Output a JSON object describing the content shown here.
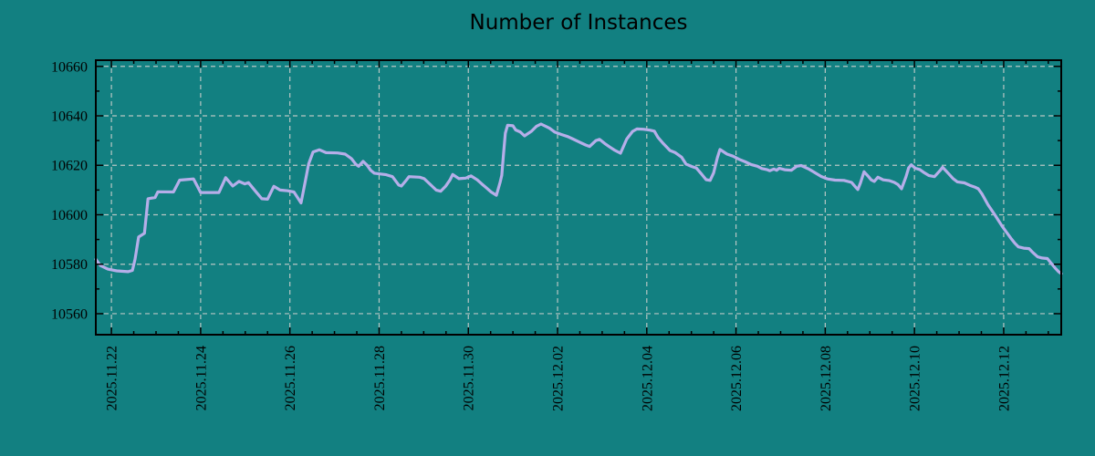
{
  "page": {
    "background_color": "#128081",
    "text_color": "#000000"
  },
  "chart_data": {
    "type": "line",
    "title": "Number of Instances",
    "xlabel": "",
    "ylabel": "",
    "legend": false,
    "grid": true,
    "series_name": "instances",
    "series_color": "#b6aee9",
    "line_width": 3.2,
    "grid_color": "#b8c6c4",
    "axis_color": "#000000",
    "x_axis": {
      "kind": "time",
      "range_days": [
        -0.35,
        21.29
      ],
      "minor_tick_interval_days": 0.5,
      "major_ticks": [
        {
          "day": 0,
          "label": "2025.11.22"
        },
        {
          "day": 2,
          "label": "2025.11.24"
        },
        {
          "day": 4,
          "label": "2025.11.26"
        },
        {
          "day": 6,
          "label": "2025.11.28"
        },
        {
          "day": 8,
          "label": "2025.11.30"
        },
        {
          "day": 10,
          "label": "2025.12.02"
        },
        {
          "day": 12,
          "label": "2025.12.04"
        },
        {
          "day": 14,
          "label": "2025.12.06"
        },
        {
          "day": 16,
          "label": "2025.12.08"
        },
        {
          "day": 18,
          "label": "2025.12.10"
        },
        {
          "day": 20,
          "label": "2025.12.12"
        }
      ]
    },
    "y_axis": {
      "range": [
        10551.5,
        10662.5
      ],
      "minor_tick_interval": 10,
      "major_ticks": [
        10560,
        10580,
        10600,
        10620,
        10640,
        10660
      ]
    },
    "points": [
      [
        -0.35,
        10582
      ],
      [
        -0.25,
        10579.5
      ],
      [
        -0.08,
        10578
      ],
      [
        0.12,
        10577.3
      ],
      [
        0.37,
        10577
      ],
      [
        0.47,
        10577.5
      ],
      [
        0.53,
        10582
      ],
      [
        0.61,
        10591
      ],
      [
        0.74,
        10592.5
      ],
      [
        0.82,
        10606.5
      ],
      [
        0.98,
        10607
      ],
      [
        1.04,
        10609.3
      ],
      [
        1.39,
        10609.2
      ],
      [
        1.53,
        10614
      ],
      [
        1.84,
        10614.5
      ],
      [
        2.0,
        10609
      ],
      [
        2.41,
        10609
      ],
      [
        2.56,
        10615
      ],
      [
        2.72,
        10611.6
      ],
      [
        2.86,
        10613.5
      ],
      [
        2.99,
        10612.5
      ],
      [
        3.07,
        10613
      ],
      [
        3.23,
        10609.5
      ],
      [
        3.37,
        10606.5
      ],
      [
        3.5,
        10606.3
      ],
      [
        3.64,
        10611.5
      ],
      [
        3.78,
        10610
      ],
      [
        3.95,
        10609.7
      ],
      [
        4.09,
        10609.2
      ],
      [
        4.17,
        10607
      ],
      [
        4.25,
        10604.8
      ],
      [
        4.34,
        10613
      ],
      [
        4.42,
        10620.5
      ],
      [
        4.52,
        10625.4
      ],
      [
        4.66,
        10626.3
      ],
      [
        4.81,
        10625.1
      ],
      [
        5.07,
        10625
      ],
      [
        5.24,
        10624.5
      ],
      [
        5.38,
        10622.7
      ],
      [
        5.48,
        10620.4
      ],
      [
        5.54,
        10619.6
      ],
      [
        5.64,
        10621.6
      ],
      [
        5.73,
        10620
      ],
      [
        5.81,
        10618
      ],
      [
        5.89,
        10616.8
      ],
      [
        6.16,
        10616.2
      ],
      [
        6.3,
        10615.4
      ],
      [
        6.44,
        10612
      ],
      [
        6.5,
        10611.6
      ],
      [
        6.61,
        10614
      ],
      [
        6.67,
        10615.4
      ],
      [
        6.91,
        10615.2
      ],
      [
        7.01,
        10614.6
      ],
      [
        7.16,
        10612
      ],
      [
        7.28,
        10610
      ],
      [
        7.38,
        10609.5
      ],
      [
        7.49,
        10611.5
      ],
      [
        7.59,
        10614.1
      ],
      [
        7.65,
        10616.3
      ],
      [
        7.79,
        10614.6
      ],
      [
        7.94,
        10614.8
      ],
      [
        8.06,
        10615.7
      ],
      [
        8.2,
        10614.1
      ],
      [
        8.3,
        10612.5
      ],
      [
        8.41,
        10610.8
      ],
      [
        8.51,
        10609.2
      ],
      [
        8.63,
        10607.9
      ],
      [
        8.71,
        10613
      ],
      [
        8.75,
        10616
      ],
      [
        8.79,
        10625
      ],
      [
        8.83,
        10633
      ],
      [
        8.88,
        10636.2
      ],
      [
        9.0,
        10636
      ],
      [
        9.06,
        10634.3
      ],
      [
        9.16,
        10633.5
      ],
      [
        9.26,
        10631.9
      ],
      [
        9.41,
        10633.7
      ],
      [
        9.53,
        10635.8
      ],
      [
        9.63,
        10636.7
      ],
      [
        9.82,
        10635
      ],
      [
        9.94,
        10633.4
      ],
      [
        10.08,
        10632.5
      ],
      [
        10.23,
        10631.6
      ],
      [
        10.35,
        10630.6
      ],
      [
        10.49,
        10629.4
      ],
      [
        10.63,
        10628.2
      ],
      [
        10.72,
        10627.6
      ],
      [
        10.86,
        10630
      ],
      [
        10.94,
        10630.5
      ],
      [
        11.06,
        10628.8
      ],
      [
        11.17,
        10627.4
      ],
      [
        11.27,
        10626.2
      ],
      [
        11.41,
        10624.9
      ],
      [
        11.55,
        10630.6
      ],
      [
        11.68,
        10633.7
      ],
      [
        11.78,
        10634.7
      ],
      [
        11.92,
        10634.6
      ],
      [
        12.07,
        10634.2
      ],
      [
        12.17,
        10633.8
      ],
      [
        12.25,
        10631.3
      ],
      [
        12.37,
        10628.8
      ],
      [
        12.52,
        10626
      ],
      [
        12.64,
        10625.1
      ],
      [
        12.78,
        10623.3
      ],
      [
        12.88,
        10620.5
      ],
      [
        13.01,
        10619.5
      ],
      [
        13.11,
        10618.9
      ],
      [
        13.21,
        10616.8
      ],
      [
        13.33,
        10614.2
      ],
      [
        13.42,
        10613.9
      ],
      [
        13.5,
        10617
      ],
      [
        13.58,
        10623
      ],
      [
        13.64,
        10626.4
      ],
      [
        13.8,
        10624.5
      ],
      [
        13.93,
        10623.7
      ],
      [
        14.07,
        10622.4
      ],
      [
        14.21,
        10621.4
      ],
      [
        14.34,
        10620.3
      ],
      [
        14.48,
        10619.6
      ],
      [
        14.58,
        10618.7
      ],
      [
        14.7,
        10618.2
      ],
      [
        14.76,
        10617.8
      ],
      [
        14.85,
        10618.5
      ],
      [
        14.91,
        10618
      ],
      [
        14.97,
        10618.8
      ],
      [
        15.09,
        10618.2
      ],
      [
        15.24,
        10618
      ],
      [
        15.36,
        10619.6
      ],
      [
        15.46,
        10619.9
      ],
      [
        15.64,
        10618.4
      ],
      [
        15.77,
        10617
      ],
      [
        15.91,
        10615.5
      ],
      [
        16.05,
        10614.5
      ],
      [
        16.22,
        10614
      ],
      [
        16.42,
        10613.9
      ],
      [
        16.59,
        10613.1
      ],
      [
        16.69,
        10611
      ],
      [
        16.73,
        10610.2
      ],
      [
        16.79,
        10612.9
      ],
      [
        16.87,
        10617.4
      ],
      [
        16.97,
        10615.4
      ],
      [
        17.03,
        10614.1
      ],
      [
        17.1,
        10613.5
      ],
      [
        17.18,
        10615.2
      ],
      [
        17.3,
        10614.1
      ],
      [
        17.44,
        10613.8
      ],
      [
        17.55,
        10613.1
      ],
      [
        17.63,
        10612.2
      ],
      [
        17.71,
        10610.5
      ],
      [
        17.81,
        10615.4
      ],
      [
        17.87,
        10619
      ],
      [
        17.93,
        10620.2
      ],
      [
        18.02,
        10618.8
      ],
      [
        18.12,
        10618.3
      ],
      [
        18.22,
        10617
      ],
      [
        18.32,
        10615.9
      ],
      [
        18.45,
        10615.4
      ],
      [
        18.57,
        10617.8
      ],
      [
        18.63,
        10619.2
      ],
      [
        18.77,
        10616.5
      ],
      [
        18.86,
        10614.7
      ],
      [
        18.96,
        10613.3
      ],
      [
        19.12,
        10612.9
      ],
      [
        19.24,
        10611.9
      ],
      [
        19.35,
        10611.2
      ],
      [
        19.43,
        10610.5
      ],
      [
        19.51,
        10608.5
      ],
      [
        19.65,
        10604
      ],
      [
        19.8,
        10600
      ],
      [
        19.96,
        10595.5
      ],
      [
        20.06,
        10593
      ],
      [
        20.16,
        10590.5
      ],
      [
        20.25,
        10588.5
      ],
      [
        20.33,
        10587
      ],
      [
        20.45,
        10586.5
      ],
      [
        20.57,
        10586.3
      ],
      [
        20.65,
        10584.8
      ],
      [
        20.76,
        10583
      ],
      [
        20.86,
        10582.5
      ],
      [
        20.98,
        10582.3
      ],
      [
        21.06,
        10580.5
      ],
      [
        21.15,
        10578.5
      ],
      [
        21.23,
        10577
      ],
      [
        21.29,
        10576.2
      ]
    ]
  }
}
